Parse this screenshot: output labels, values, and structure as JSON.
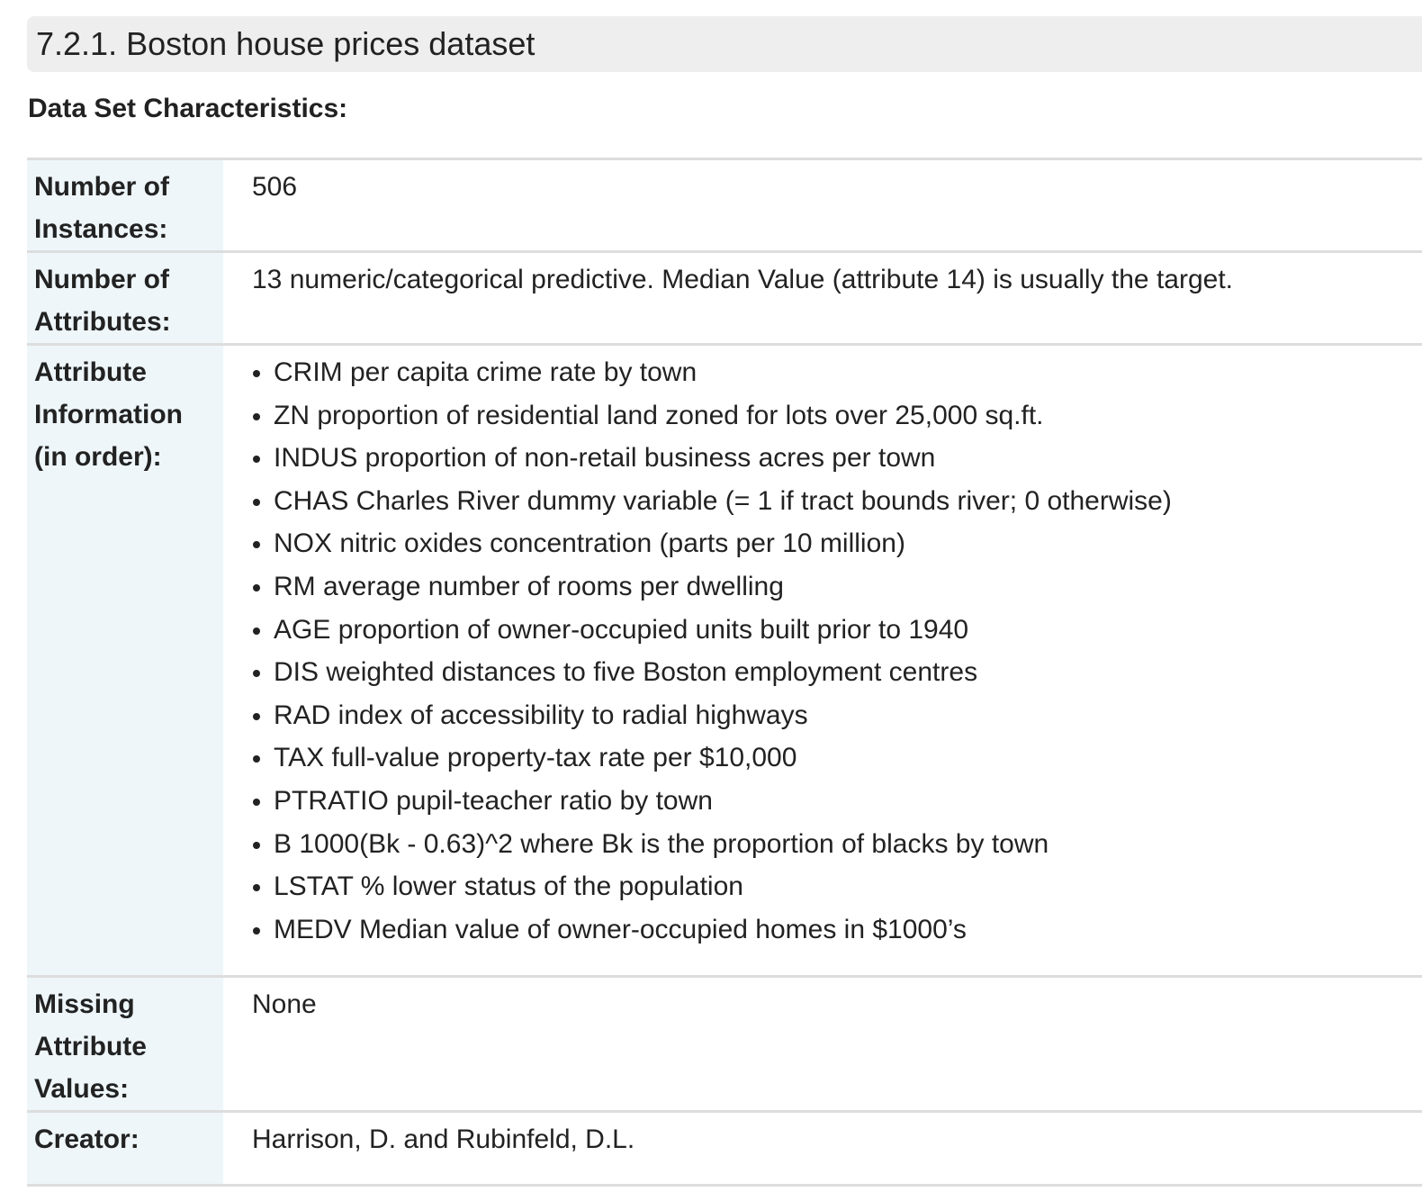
{
  "section": {
    "title": "7.2.1. Boston house prices dataset"
  },
  "subtitle": "Data Set Characteristics:",
  "characteristics": {
    "instances": {
      "label": "Number of Instances:",
      "value": "506"
    },
    "attributes": {
      "label": "Number of Attributes:",
      "value": "13 numeric/categorical predictive. Median Value (attribute 14) is usually the target."
    },
    "attribute_info": {
      "label": "Attribute Information (in order):",
      "items": [
        "CRIM per capita crime rate by town",
        "ZN proportion of residential land zoned for lots over 25,000 sq.ft.",
        "INDUS proportion of non-retail business acres per town",
        "CHAS Charles River dummy variable (= 1 if tract bounds river; 0 otherwise)",
        "NOX nitric oxides concentration (parts per 10 million)",
        "RM average number of rooms per dwelling",
        "AGE proportion of owner-occupied units built prior to 1940",
        "DIS weighted distances to five Boston employment centres",
        "RAD index of accessibility to radial highways",
        "TAX full-value property-tax rate per $10,000",
        "PTRATIO pupil-teacher ratio by town",
        "B 1000(Bk - 0.63)^2 where Bk is the proportion of blacks by town",
        "LSTAT % lower status of the population",
        "MEDV Median value of owner-occupied homes in $1000’s"
      ]
    },
    "missing": {
      "label": "Missing Attribute Values:",
      "value": "None"
    },
    "creator": {
      "label": "Creator:",
      "value": "Harrison, D. and Rubinfeld, D.L."
    }
  }
}
